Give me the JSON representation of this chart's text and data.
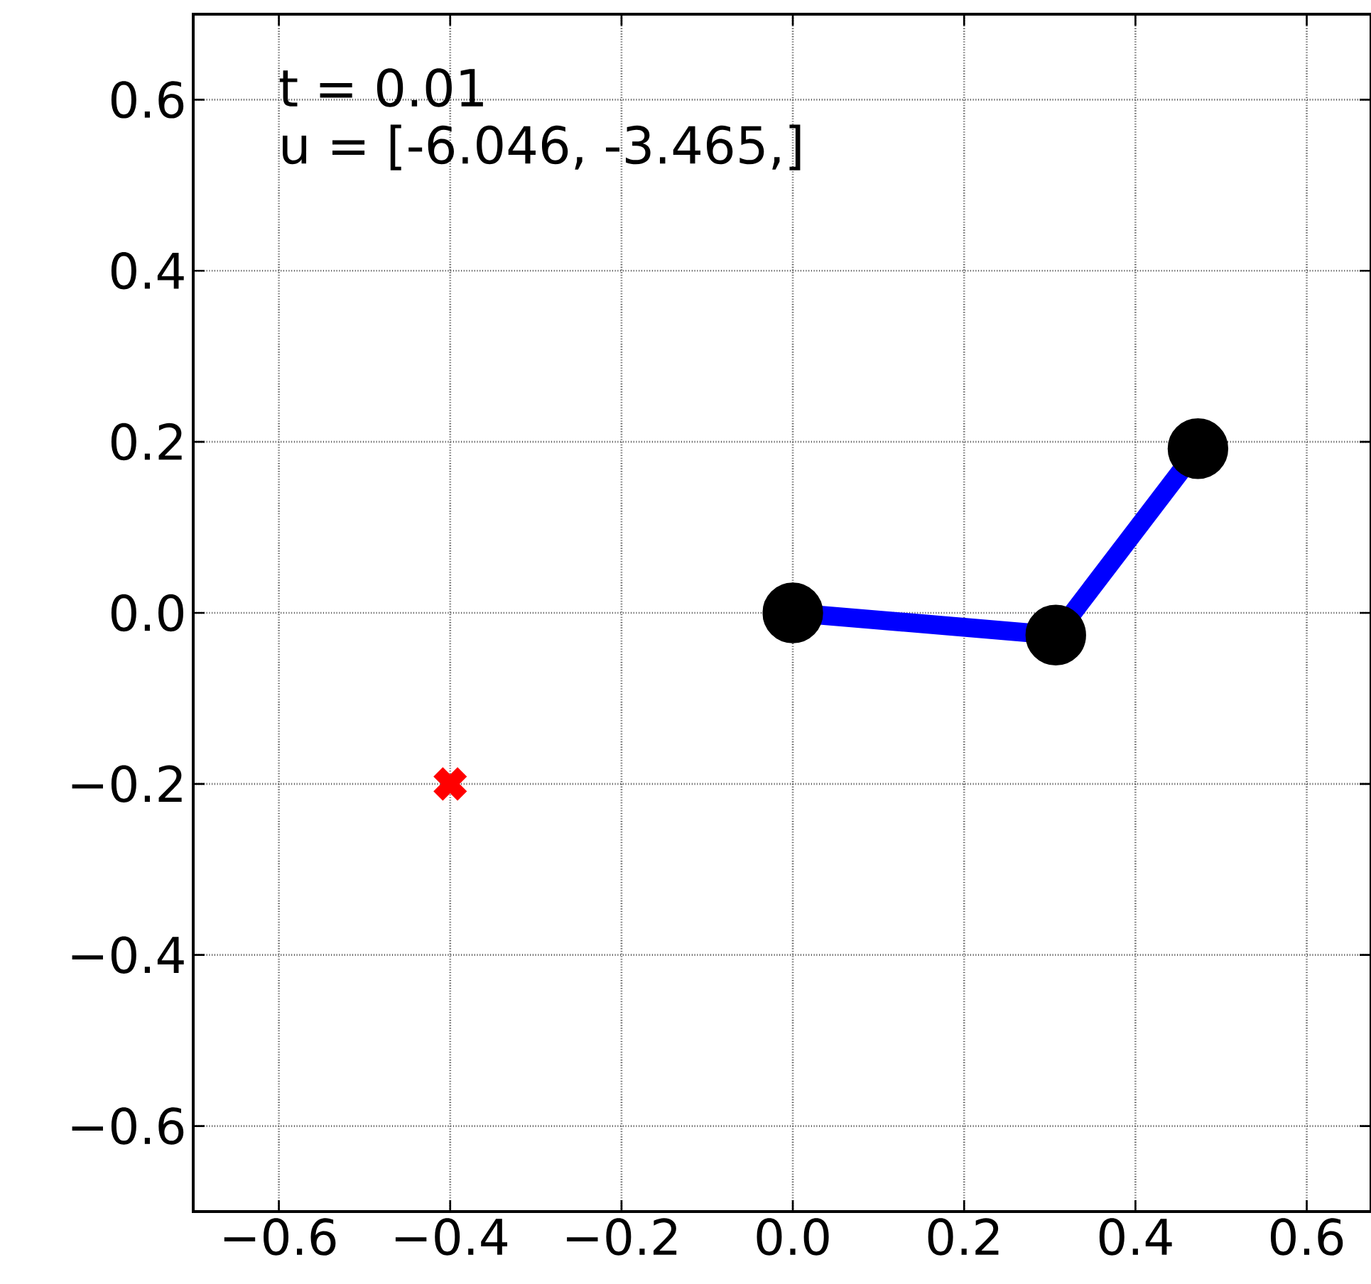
{
  "chart_data": {
    "type": "line",
    "xlim": [
      -0.7,
      0.675
    ],
    "ylim": [
      -0.7,
      0.7
    ],
    "xticks": [
      {
        "value": -0.6,
        "label": "−0.6"
      },
      {
        "value": -0.4,
        "label": "−0.4"
      },
      {
        "value": -0.2,
        "label": "−0.2"
      },
      {
        "value": 0,
        "label": "0.0"
      },
      {
        "value": 0.2,
        "label": "0.2"
      },
      {
        "value": 0.4,
        "label": "0.4"
      },
      {
        "value": 0.6,
        "label": "0.6"
      }
    ],
    "yticks": [
      {
        "value": -0.6,
        "label": "−0.6"
      },
      {
        "value": -0.4,
        "label": "−0.4"
      },
      {
        "value": -0.2,
        "label": "−0.2"
      },
      {
        "value": 0,
        "label": "0.0"
      },
      {
        "value": 0.2,
        "label": "0.2"
      },
      {
        "value": 0.4,
        "label": "0.4"
      },
      {
        "value": 0.6,
        "label": "0.6"
      }
    ],
    "grid": true,
    "annotations": [
      "t = 0.01",
      "u = [-6.046, -3.465,]"
    ],
    "series": [
      {
        "color": "#0000ff",
        "marker": "circle",
        "line_style": "solid",
        "x": [
          0,
          0.307,
          0.473
        ],
        "values": [
          0,
          -0.026,
          0.192
        ]
      },
      {
        "type": "scatter",
        "color": "#ff0000",
        "marker": "cross",
        "x": [
          -0.4
        ],
        "values": [
          -0.2
        ]
      }
    ]
  }
}
